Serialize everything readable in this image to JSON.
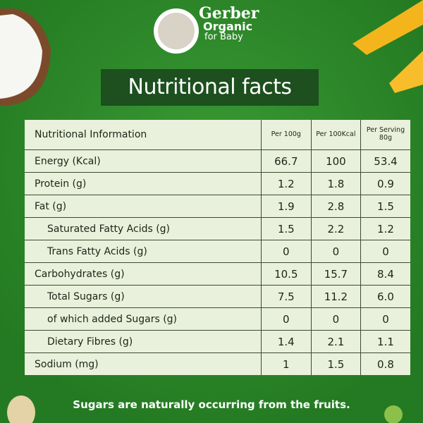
{
  "logo": {
    "brand": "Gerber",
    "line1": "Organic",
    "line2": "for Baby"
  },
  "title": "Nutritional facts",
  "table": {
    "header": [
      "Nutritional Information",
      "Per 100g",
      "Per 100Kcal",
      "Per Serving 80g"
    ],
    "rows": [
      {
        "label": "Energy (Kcal)",
        "values": [
          "66.7",
          "100",
          "53.4"
        ],
        "indent": false
      },
      {
        "label": "Protein (g)",
        "values": [
          "1.2",
          "1.8",
          "0.9"
        ],
        "indent": false
      },
      {
        "label": "Fat (g)",
        "values": [
          "1.9",
          "2.8",
          "1.5"
        ],
        "indent": false
      },
      {
        "label": "Saturated Fatty Acids (g)",
        "values": [
          "1.5",
          "2.2",
          "1.2"
        ],
        "indent": true
      },
      {
        "label": "Trans Fatty Acids (g)",
        "values": [
          "0",
          "0",
          "0"
        ],
        "indent": true
      },
      {
        "label": "Carbohydrates (g)",
        "values": [
          "10.5",
          "15.7",
          "8.4"
        ],
        "indent": false
      },
      {
        "label": "Total Sugars (g)",
        "values": [
          "7.5",
          "11.2",
          "6.0"
        ],
        "indent": true
      },
      {
        "label": "of which added Sugars (g)",
        "values": [
          "0",
          "0",
          "0"
        ],
        "indent": true
      },
      {
        "label": "Dietary Fibres (g)",
        "values": [
          "1.4",
          "2.1",
          "1.1"
        ],
        "indent": true
      },
      {
        "label": "Sodium (mg)",
        "values": [
          "1",
          "1.5",
          "0.8"
        ],
        "indent": false
      }
    ]
  },
  "note": "Sugars are naturally occurring from the fruits."
}
